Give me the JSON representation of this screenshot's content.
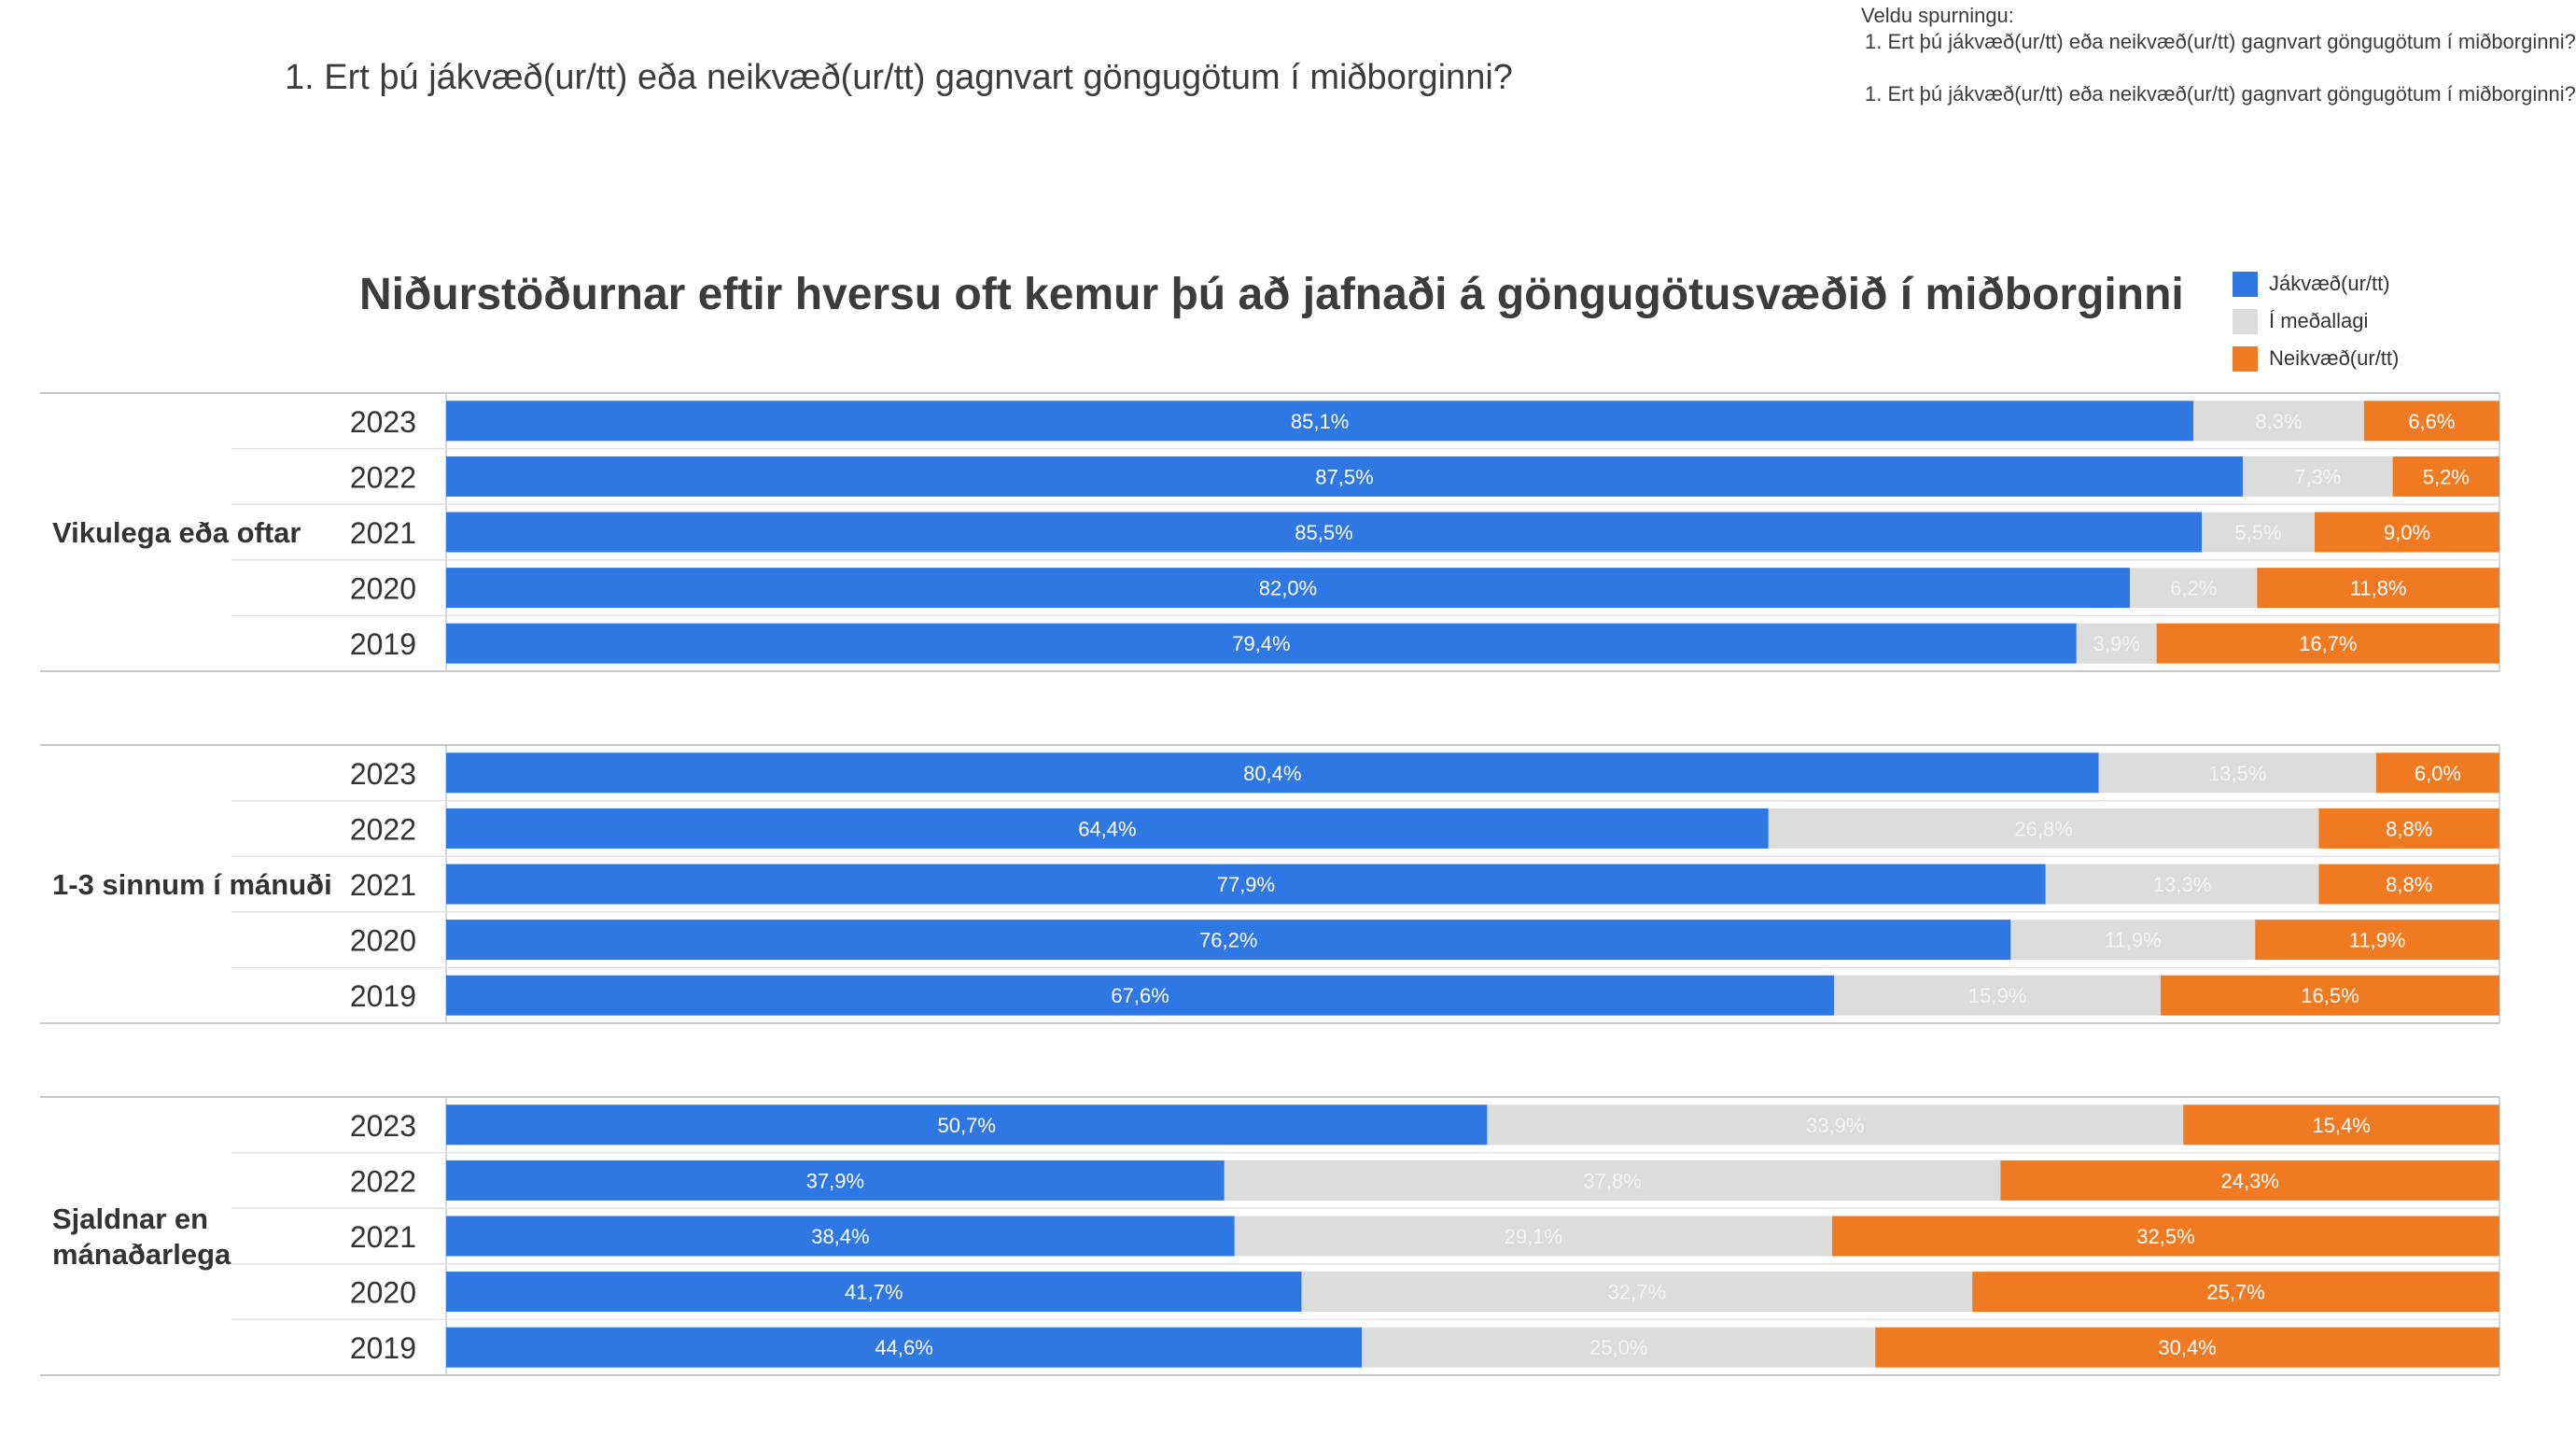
{
  "question_heading": "1. Ert þú jákvæð(ur/tt) eða neikvæð(ur/tt) gagnvart göngugötum í miðborginni?",
  "selector": {
    "label": "Veldu spurningu:",
    "line1": "1. Ert þú jákvæð(ur/tt) eða neikvæð(ur/tt) gagnvart göngugötum í miðborginni?",
    "line2": "1. Ert þú jákvæð(ur/tt) eða neikvæð(ur/tt) gagnvart göngugötum í miðborginni?"
  },
  "colors": {
    "positive": "#2f78e4",
    "neutral": "#dcdcdc",
    "negative": "#f07a22",
    "grid": "#c8c8c8"
  },
  "chart_data": {
    "type": "bar",
    "orientation": "horizontal",
    "stacked": true,
    "percent_scale": [
      0,
      100
    ],
    "title": "Niðurstöðurnar eftir hversu oft kemur þú að jafnaði á göngugötusvæðið í miðborginni",
    "legend_position": "top-right",
    "series": [
      {
        "key": "positive",
        "name": "Jákvæð(ur/tt)",
        "color": "#2f78e4"
      },
      {
        "key": "neutral",
        "name": "Í meðallagi",
        "color": "#dcdcdc"
      },
      {
        "key": "negative",
        "name": "Neikvæð(ur/tt)",
        "color": "#f07a22"
      }
    ],
    "groups": [
      {
        "label": "Vikulega eða oftar",
        "rows": [
          {
            "year": "2023",
            "values": [
              85.1,
              8.3,
              6.6
            ],
            "labels": [
              "85,1%",
              "8,3%",
              "6,6%"
            ]
          },
          {
            "year": "2022",
            "values": [
              87.5,
              7.3,
              5.2
            ],
            "labels": [
              "87,5%",
              "7,3%",
              "5,2%"
            ]
          },
          {
            "year": "2021",
            "values": [
              85.5,
              5.5,
              9.0
            ],
            "labels": [
              "85,5%",
              "5,5%",
              "9,0%"
            ]
          },
          {
            "year": "2020",
            "values": [
              82.0,
              6.2,
              11.8
            ],
            "labels": [
              "82,0%",
              "6,2%",
              "11,8%"
            ]
          },
          {
            "year": "2019",
            "values": [
              79.4,
              3.9,
              16.7
            ],
            "labels": [
              "79,4%",
              "3,9%",
              "16,7%"
            ]
          }
        ]
      },
      {
        "label": "1-3 sinnum í mánuði",
        "rows": [
          {
            "year": "2023",
            "values": [
              80.4,
              13.5,
              6.0
            ],
            "labels": [
              "80,4%",
              "13,5%",
              "6,0%"
            ]
          },
          {
            "year": "2022",
            "values": [
              64.4,
              26.8,
              8.8
            ],
            "labels": [
              "64,4%",
              "26,8%",
              "8,8%"
            ]
          },
          {
            "year": "2021",
            "values": [
              77.9,
              13.3,
              8.8
            ],
            "labels": [
              "77,9%",
              "13,3%",
              "8,8%"
            ]
          },
          {
            "year": "2020",
            "values": [
              76.2,
              11.9,
              11.9
            ],
            "labels": [
              "76,2%",
              "11,9%",
              "11,9%"
            ]
          },
          {
            "year": "2019",
            "values": [
              67.6,
              15.9,
              16.5
            ],
            "labels": [
              "67,6%",
              "15,9%",
              "16,5%"
            ]
          }
        ]
      },
      {
        "label": "Sjaldnar en mánaðarlega",
        "rows": [
          {
            "year": "2023",
            "values": [
              50.7,
              33.9,
              15.4
            ],
            "labels": [
              "50,7%",
              "33,9%",
              "15,4%"
            ]
          },
          {
            "year": "2022",
            "values": [
              37.9,
              37.8,
              24.3
            ],
            "labels": [
              "37,9%",
              "37,8%",
              "24,3%"
            ]
          },
          {
            "year": "2021",
            "values": [
              38.4,
              29.1,
              32.5
            ],
            "labels": [
              "38,4%",
              "29,1%",
              "32,5%"
            ]
          },
          {
            "year": "2020",
            "values": [
              41.7,
              32.7,
              25.7
            ],
            "labels": [
              "41,7%",
              "32,7%",
              "25,7%"
            ]
          },
          {
            "year": "2019",
            "values": [
              44.6,
              25.0,
              30.4
            ],
            "labels": [
              "44,6%",
              "25,0%",
              "30,4%"
            ]
          }
        ]
      }
    ]
  }
}
